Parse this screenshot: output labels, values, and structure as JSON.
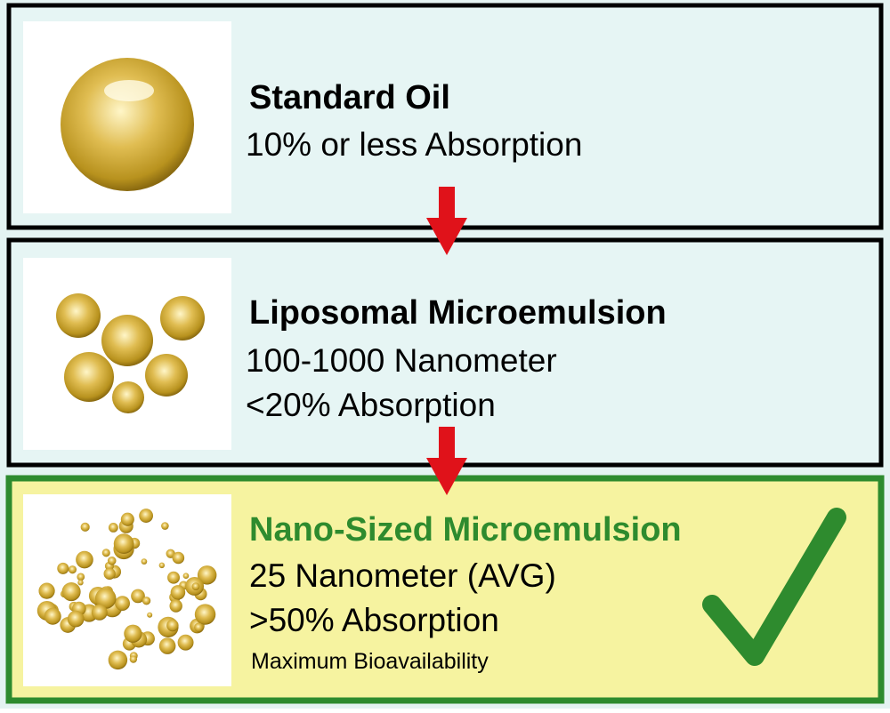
{
  "panels": [
    {
      "title": "Standard Oil",
      "lines": [
        "10% or less Absorption"
      ]
    },
    {
      "title": "Liposomal Microemulsion",
      "lines": [
        "100-1000 Nanometer",
        "<20% Absorption"
      ]
    },
    {
      "title": "Nano-Sized Microemulsion",
      "lines": [
        "25 Nanometer (AVG)",
        ">50% Absorption",
        "Maximum Bioavailability"
      ]
    }
  ]
}
